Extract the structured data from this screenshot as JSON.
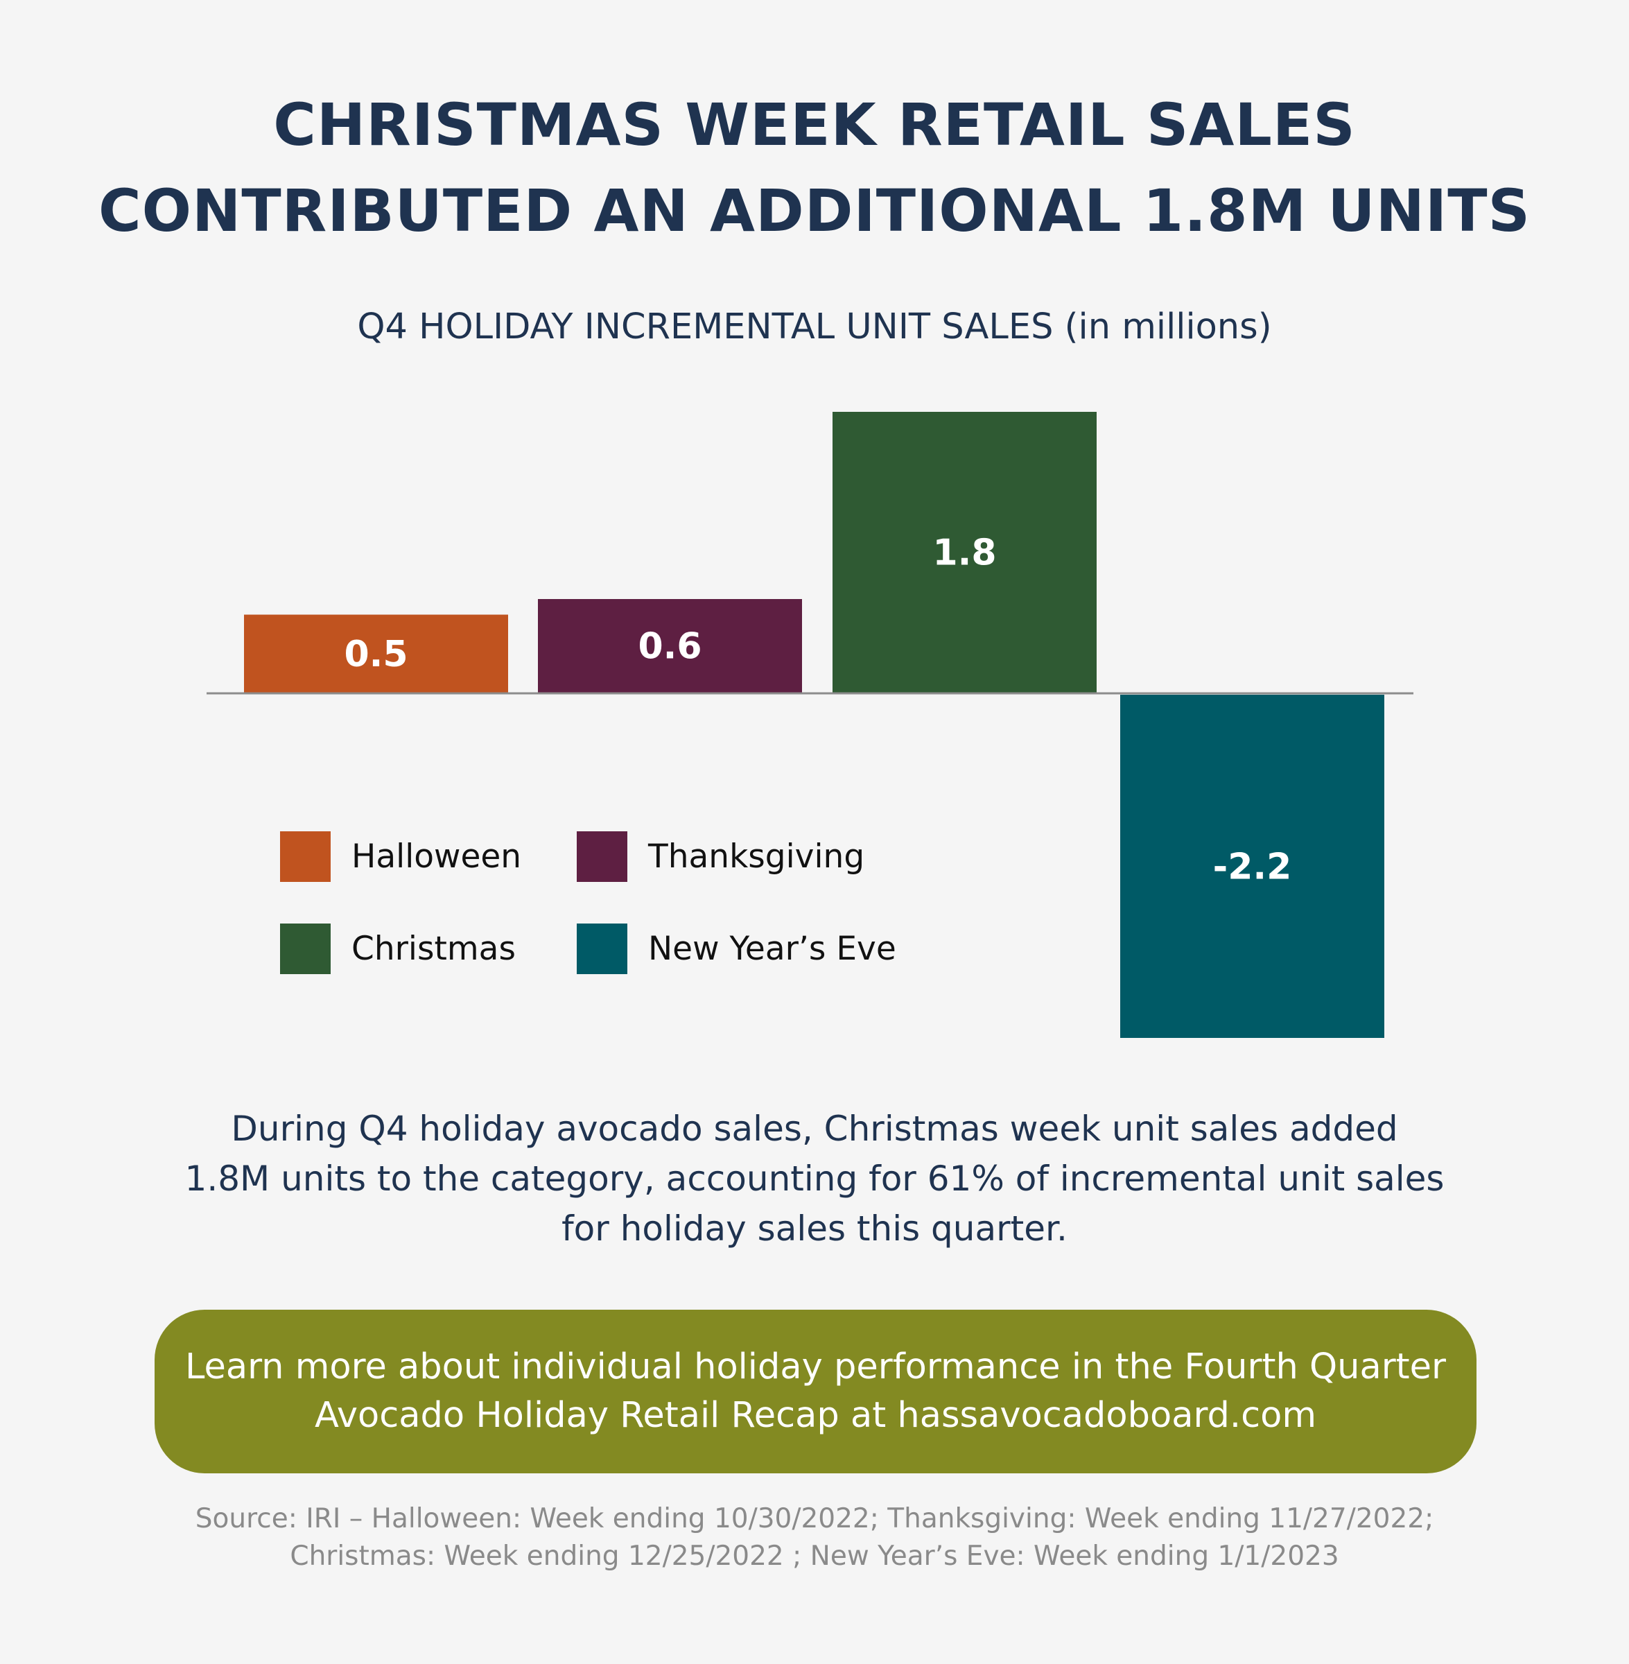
{
  "headline": {
    "line1": "CHRISTMAS WEEK RETAIL SALES",
    "line2": "CONTRIBUTED AN ADDITIONAL 1.8M UNITS"
  },
  "subtitle": "Q4 HOLIDAY INCREMENTAL UNIT SALES  (in millions)",
  "chart_data": {
    "type": "bar",
    "title": "Q4 HOLIDAY INCREMENTAL UNIT SALES  (in millions)",
    "categories": [
      "Halloween",
      "Thanksgiving",
      "Christmas",
      "New Year’s Eve"
    ],
    "values": [
      0.5,
      0.6,
      1.8,
      -2.2
    ],
    "data_labels": [
      "0.5",
      "0.6",
      "1.8",
      "-2.2"
    ],
    "colors": [
      "#c0531f",
      "#5e1f42",
      "#2f5a33",
      "#005a66"
    ],
    "ylim": [
      -2.2,
      1.8
    ],
    "grid": false,
    "legend_placement": "bottom-left",
    "xlabel": "",
    "ylabel": ""
  },
  "legend": [
    {
      "label": "Halloween",
      "color": "#c0531f"
    },
    {
      "label": "Thanksgiving",
      "color": "#5e1f42"
    },
    {
      "label": "Christmas",
      "color": "#2f5a33"
    },
    {
      "label": "New Year’s Eve",
      "color": "#005a66"
    }
  ],
  "body": {
    "line1": "During Q4 holiday avocado sales, Christmas week unit sales added",
    "line2": "1.8M units to the category, accounting for 61% of incremental unit sales",
    "line3": "for holiday sales this quarter."
  },
  "cta": {
    "line1": "Learn more about individual holiday performance in the Fourth Quarter",
    "line2": "Avocado Holiday Retail Recap at hassavocadoboard.com",
    "color": "#838a22"
  },
  "source": {
    "line1": "Source: IRI – Halloween: Week ending 10/30/2022; Thanksgiving: Week ending 11/27/2022;",
    "line2": "Christmas: Week ending 12/25/2022 ; New Year’s Eve: Week ending 1/1/2023"
  }
}
